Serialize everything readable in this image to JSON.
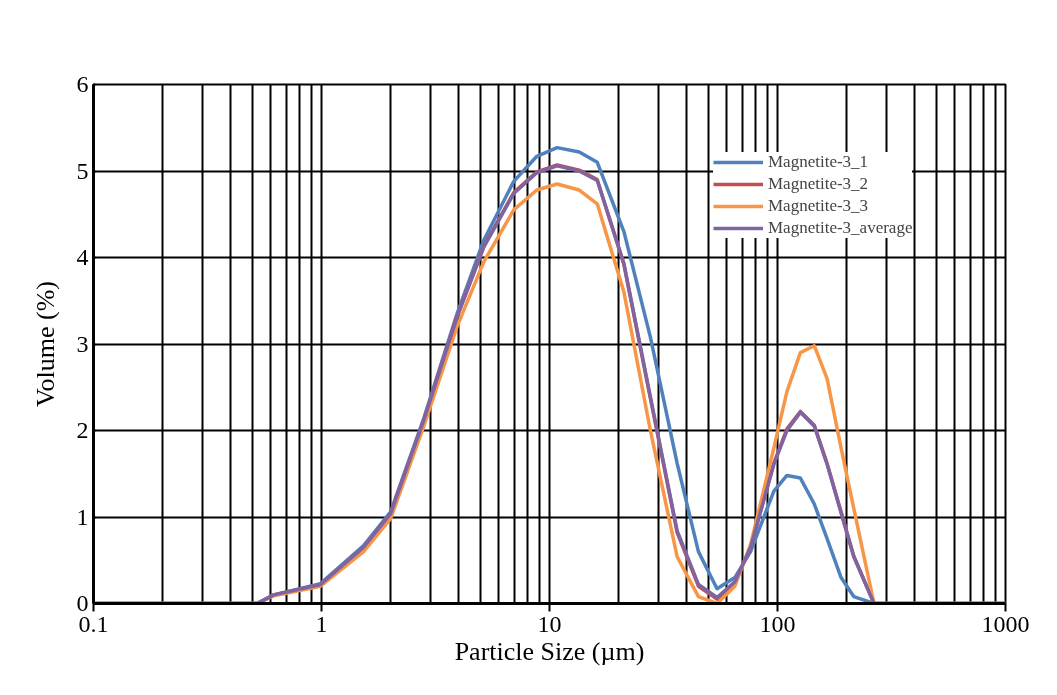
{
  "chart_data": {
    "type": "line",
    "xlabel": "Particle Size (µm)",
    "ylabel": "Volume (%)",
    "x": [
      0.1,
      0.522,
      0.618,
      0.99,
      1.53,
      2.01,
      2.81,
      3.93,
      5.15,
      6.97,
      8.8,
      10.8,
      13.5,
      16.2,
      21.2,
      27.7,
      36.3,
      45,
      54.3,
      65,
      76.2,
      96.4,
      110,
      126,
      145,
      165,
      190,
      216,
      265,
      1000
    ],
    "series": [
      {
        "name": "Magnetite-3_1",
        "color": "#4f81bd",
        "values": [
          0,
          0,
          0.1,
          0.23,
          0.67,
          1.06,
          2.14,
          3.35,
          4.2,
          4.88,
          5.17,
          5.27,
          5.22,
          5.1,
          4.3,
          3.08,
          1.62,
          0.6,
          0.17,
          0.3,
          0.6,
          1.3,
          1.48,
          1.45,
          1.15,
          0.75,
          0.3,
          0.08,
          0,
          0
        ]
      },
      {
        "name": "Magnetite-3_2",
        "color": "#c0504d",
        "values": [
          0,
          0,
          0.1,
          0.22,
          0.65,
          1.04,
          2.12,
          3.32,
          4.13,
          4.75,
          4.99,
          5.07,
          5.01,
          4.9,
          3.92,
          2.37,
          0.82,
          0.2,
          0.05,
          0.24,
          0.65,
          1.62,
          2.02,
          2.22,
          2.06,
          1.62,
          1.06,
          0.55,
          0,
          0
        ]
      },
      {
        "name": "Magnetite-3_3",
        "color": "#f79646",
        "values": [
          0,
          0,
          0.09,
          0.2,
          0.6,
          0.98,
          2.05,
          3.2,
          3.95,
          4.55,
          4.78,
          4.85,
          4.78,
          4.62,
          3.6,
          2.0,
          0.54,
          0.08,
          0,
          0.2,
          0.68,
          1.8,
          2.45,
          2.9,
          2.98,
          2.6,
          1.8,
          1.1,
          0,
          0
        ]
      },
      {
        "name": "Magnetite-3_average",
        "color": "#8064a2",
        "values": [
          0,
          0,
          0.1,
          0.22,
          0.65,
          1.04,
          2.12,
          3.31,
          4.12,
          4.74,
          4.98,
          5.06,
          5.0,
          4.89,
          3.93,
          2.39,
          0.84,
          0.22,
          0.07,
          0.25,
          0.65,
          1.61,
          2.0,
          2.21,
          2.05,
          1.61,
          1.05,
          0.54,
          0,
          0
        ]
      }
    ],
    "log": "x",
    "xlim": [
      0.1,
      1000
    ],
    "xticks": [
      0.1,
      1,
      10,
      100,
      1000
    ],
    "ylim": [
      0,
      6
    ],
    "yticks": [
      0,
      1,
      2,
      3,
      4,
      5,
      6
    ],
    "grid": true,
    "legend": "top right",
    "marker": "none",
    "line_style": "solid"
  }
}
